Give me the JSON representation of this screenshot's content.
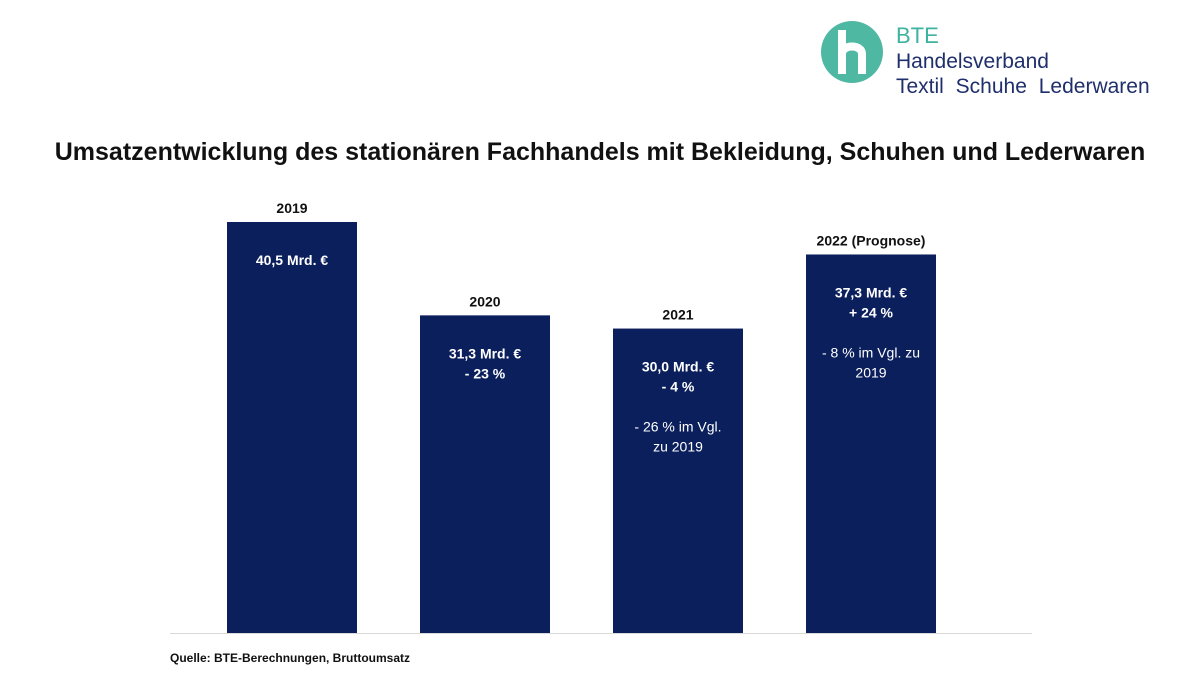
{
  "logo": {
    "brand": "BTE",
    "line2": "Handelsverband",
    "line3": "Textil Schuhe Lederwaren",
    "colors": {
      "teal": "#4fb8a3",
      "navy": "#1f2f6b"
    }
  },
  "title": "Umsatzentwicklung des stationären Fachhandels mit Bekleidung, Schuhen und Lederwaren",
  "source": "Quelle: BTE-Berechnungen, Bruttoumsatz",
  "chart_data": {
    "type": "bar",
    "categories": [
      "2019",
      "2020",
      "2021",
      "2022 (Prognose)"
    ],
    "values": [
      40.5,
      31.3,
      30.0,
      37.3
    ],
    "unit": "Mrd. €",
    "ylim": [
      0,
      45
    ],
    "grid": false,
    "bar_color": "#0b1f5c",
    "bar_labels": [
      {
        "bold": [
          "40,5 Mrd. €"
        ],
        "normal": []
      },
      {
        "bold": [
          "31,3 Mrd. €",
          "- 23 %"
        ],
        "normal": []
      },
      {
        "bold": [
          "30,0 Mrd. €",
          "- 4 %"
        ],
        "normal": [
          "- 26 % im Vgl.",
          "zu 2019"
        ]
      },
      {
        "bold": [
          "37,3 Mrd. €",
          "+ 24  %"
        ],
        "normal": [
          "- 8 % im Vgl. zu",
          "2019"
        ]
      }
    ]
  }
}
